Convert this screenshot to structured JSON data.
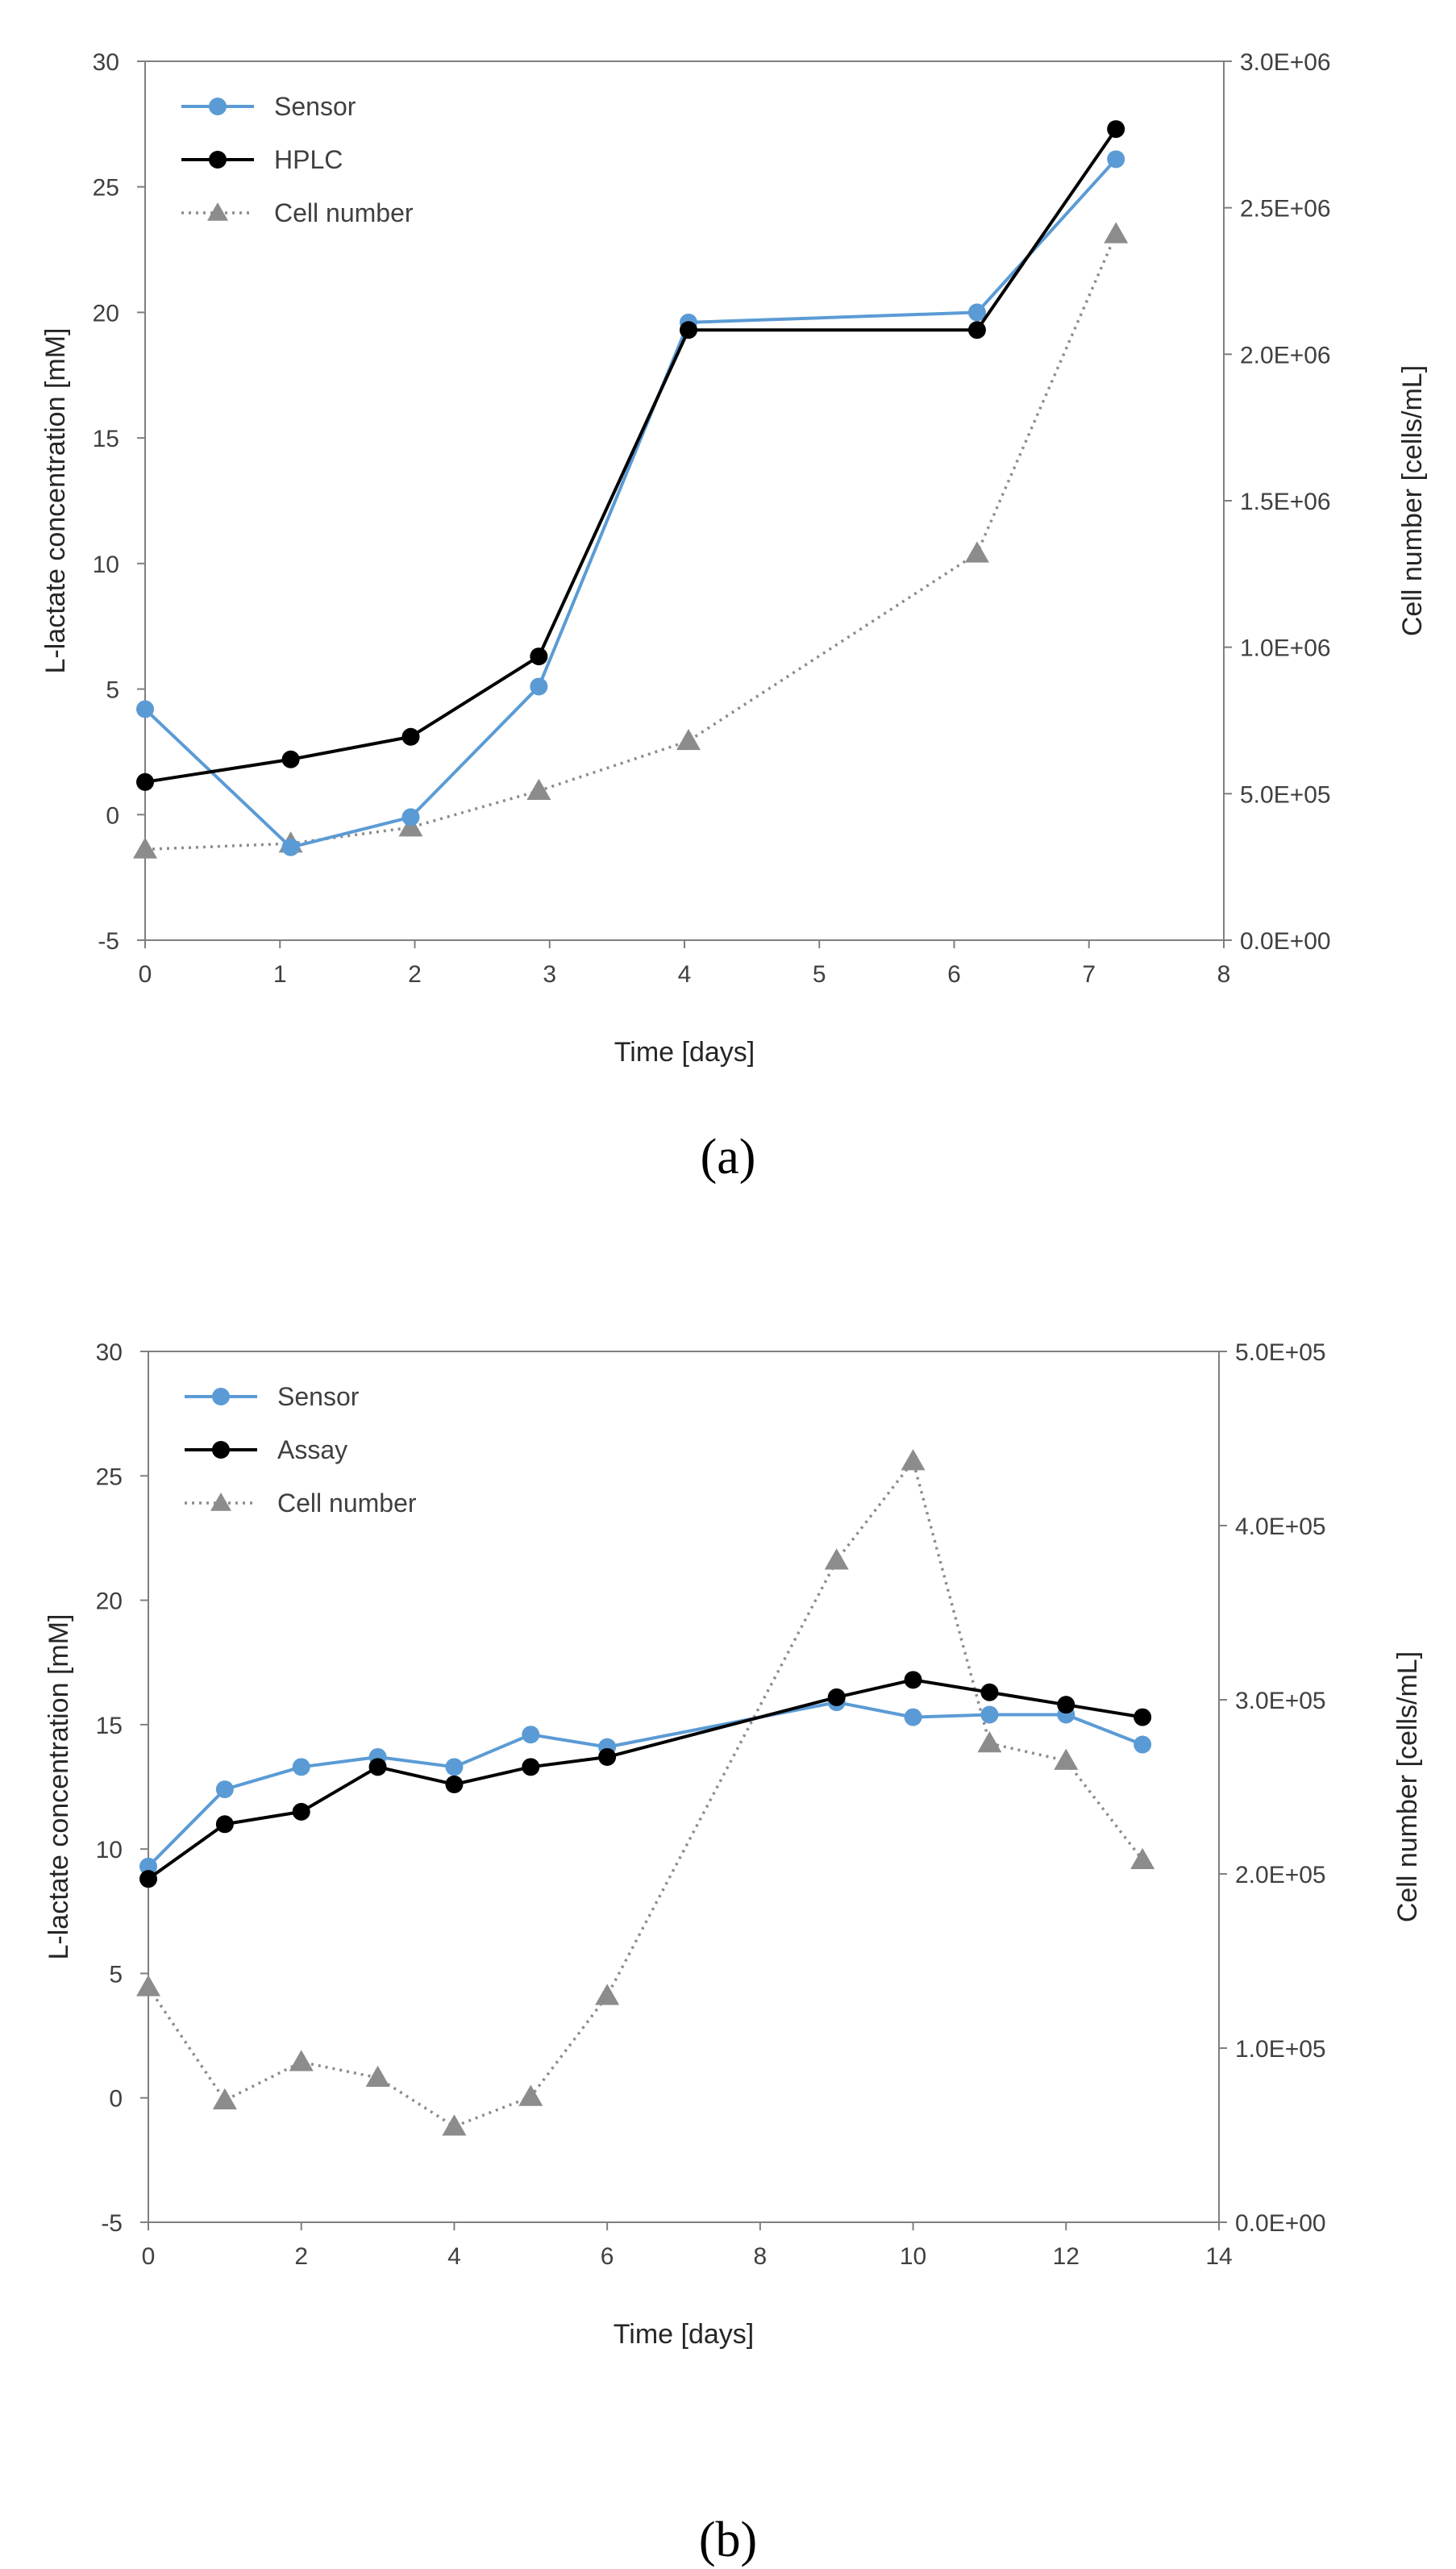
{
  "chart_data": [
    {
      "type": "line",
      "panel_label": "(a)",
      "xlabel": "Time [days]",
      "ylabel": "L-lactate concentration [mM]",
      "y2label": "Cell number [cells/mL]",
      "xlim": [
        0,
        8
      ],
      "ylim": [
        -5,
        30
      ],
      "y2lim": [
        0,
        3000000
      ],
      "xticks": [
        "0",
        "1",
        "2",
        "3",
        "4",
        "5",
        "6",
        "7",
        "8"
      ],
      "yticks": [
        "-5",
        "0",
        "5",
        "10",
        "15",
        "20",
        "25",
        "30"
      ],
      "y2ticks": [
        "0.0E+00",
        "5.0E+05",
        "1.0E+06",
        "1.5E+06",
        "2.0E+06",
        "2.5E+06",
        "3.0E+06"
      ],
      "legend_position": "top-left",
      "series": [
        {
          "name": "Sensor",
          "axis": "left",
          "color": "#5b9bd5",
          "marker": "circle",
          "line": "solid",
          "x": [
            0,
            1.08,
            1.97,
            2.92,
            4.03,
            6.17,
            7.2
          ],
          "y": [
            4.2,
            -1.3,
            -0.1,
            5.1,
            19.6,
            20.0,
            26.1
          ]
        },
        {
          "name": "HPLC",
          "axis": "left",
          "color": "#000000",
          "marker": "circle",
          "line": "solid",
          "x": [
            0,
            1.08,
            1.97,
            2.92,
            4.03,
            6.17,
            7.2
          ],
          "y": [
            1.3,
            2.2,
            3.1,
            6.3,
            19.3,
            19.3,
            27.3
          ]
        },
        {
          "name": "Cell number",
          "axis": "right",
          "color": "#8c8c8c",
          "marker": "triangle",
          "line": "dotted",
          "x": [
            0,
            1.08,
            1.97,
            2.92,
            4.03,
            6.17,
            7.2
          ],
          "y": [
            310000,
            330000,
            385000,
            510000,
            680000,
            1320000,
            2410000
          ]
        }
      ]
    },
    {
      "type": "line",
      "panel_label": "(b)",
      "xlabel": "Time [days]",
      "ylabel": "L-lactate concentration [mM]",
      "y2label": "Cell number [cells/mL]",
      "xlim": [
        0,
        14
      ],
      "ylim": [
        -5,
        30
      ],
      "y2lim": [
        0,
        500000
      ],
      "xticks": [
        "0",
        "2",
        "4",
        "6",
        "8",
        "10",
        "12",
        "14"
      ],
      "yticks": [
        "-5",
        "0",
        "5",
        "10",
        "15",
        "20",
        "25",
        "30"
      ],
      "y2ticks": [
        "0.0E+00",
        "1.0E+05",
        "2.0E+05",
        "3.0E+05",
        "4.0E+05",
        "5.0E+05"
      ],
      "legend_position": "top-left",
      "series": [
        {
          "name": "Sensor",
          "axis": "left",
          "color": "#5b9bd5",
          "marker": "circle",
          "line": "solid",
          "x": [
            0,
            1,
            2,
            3,
            4,
            5,
            6,
            9,
            10,
            11,
            12,
            13
          ],
          "y": [
            9.3,
            12.4,
            13.3,
            13.7,
            13.3,
            14.6,
            14.1,
            15.9,
            15.3,
            15.4,
            15.4,
            14.2
          ]
        },
        {
          "name": "Assay",
          "axis": "left",
          "color": "#000000",
          "marker": "circle",
          "line": "solid",
          "x": [
            0,
            1,
            2,
            3,
            4,
            5,
            6,
            9,
            10,
            11,
            12,
            13
          ],
          "y": [
            8.8,
            11.0,
            11.5,
            13.3,
            12.6,
            13.3,
            13.7,
            16.1,
            16.8,
            16.3,
            15.8,
            15.3
          ]
        },
        {
          "name": "Cell number",
          "axis": "right",
          "color": "#8c8c8c",
          "marker": "triangle",
          "line": "dotted",
          "x": [
            0,
            1,
            2,
            3,
            4,
            5,
            6,
            9,
            10,
            11,
            12,
            13
          ],
          "y": [
            135000,
            70000,
            92000,
            83000,
            55000,
            72000,
            130000,
            380000,
            437000,
            275000,
            265000,
            208000
          ]
        }
      ]
    }
  ]
}
